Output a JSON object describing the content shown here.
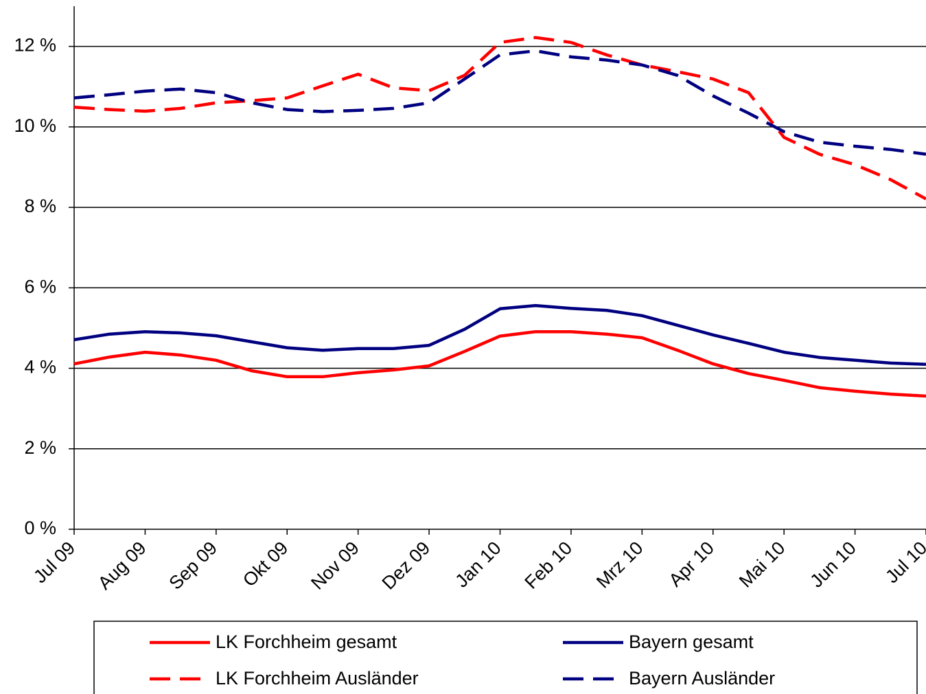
{
  "chart_data": {
    "type": "line",
    "categories": [
      "Jul 09",
      null,
      "Aug 09",
      null,
      "Sep 09",
      null,
      "Okt 09",
      null,
      "Nov 09",
      null,
      "Dez 09",
      null,
      "Jan 10",
      null,
      "Feb 10",
      null,
      "Mrz 10",
      null,
      "Apr 10",
      null,
      "Mai 10",
      null,
      "Jun 10",
      null,
      "Jul 10"
    ],
    "series": [
      {
        "name": "LK Forchheim gesamt",
        "color": "#ff0000",
        "dashed": false,
        "values": [
          4.11,
          4.28,
          4.4,
          4.33,
          4.2,
          3.94,
          3.79,
          3.79,
          3.89,
          3.96,
          4.06,
          4.42,
          4.8,
          4.91,
          4.91,
          4.85,
          4.76,
          4.45,
          4.11,
          3.87,
          3.7,
          3.52,
          3.43,
          3.36,
          3.31
        ]
      },
      {
        "name": "Bayern gesamt",
        "color": "#000080",
        "dashed": false,
        "values": [
          4.71,
          4.85,
          4.91,
          4.88,
          4.81,
          4.66,
          4.51,
          4.45,
          4.49,
          4.49,
          4.57,
          4.97,
          5.48,
          5.56,
          5.49,
          5.44,
          5.31,
          5.07,
          4.83,
          4.62,
          4.4,
          4.27,
          4.2,
          4.13,
          4.1
        ]
      },
      {
        "name": "LK Forchheim Ausländer",
        "color": "#ff0000",
        "dashed": true,
        "values": [
          10.49,
          10.43,
          10.39,
          10.46,
          10.6,
          10.65,
          10.72,
          11.02,
          11.31,
          10.97,
          10.9,
          11.28,
          12.1,
          12.22,
          12.1,
          11.79,
          11.54,
          11.37,
          11.19,
          10.85,
          9.74,
          9.32,
          9.06,
          8.69,
          8.21
        ]
      },
      {
        "name": "Bayern Ausländer",
        "color": "#000080",
        "dashed": true,
        "values": [
          10.72,
          10.8,
          10.89,
          10.94,
          10.85,
          10.6,
          10.43,
          10.38,
          10.41,
          10.46,
          10.6,
          11.19,
          11.79,
          11.89,
          11.74,
          11.66,
          11.54,
          11.28,
          10.77,
          10.34,
          9.88,
          9.62,
          9.52,
          9.44,
          9.32
        ]
      }
    ],
    "ylim": [
      0,
      13
    ],
    "yticks": [
      {
        "value": 0,
        "label": "0 %"
      },
      {
        "value": 2,
        "label": "2 %"
      },
      {
        "value": 4,
        "label": "4 %"
      },
      {
        "value": 6,
        "label": "6 %"
      },
      {
        "value": 8,
        "label": "8 %"
      },
      {
        "value": 10,
        "label": "10 %"
      },
      {
        "value": 12,
        "label": "12 %"
      }
    ],
    "grid": true,
    "legend": "bottom"
  }
}
